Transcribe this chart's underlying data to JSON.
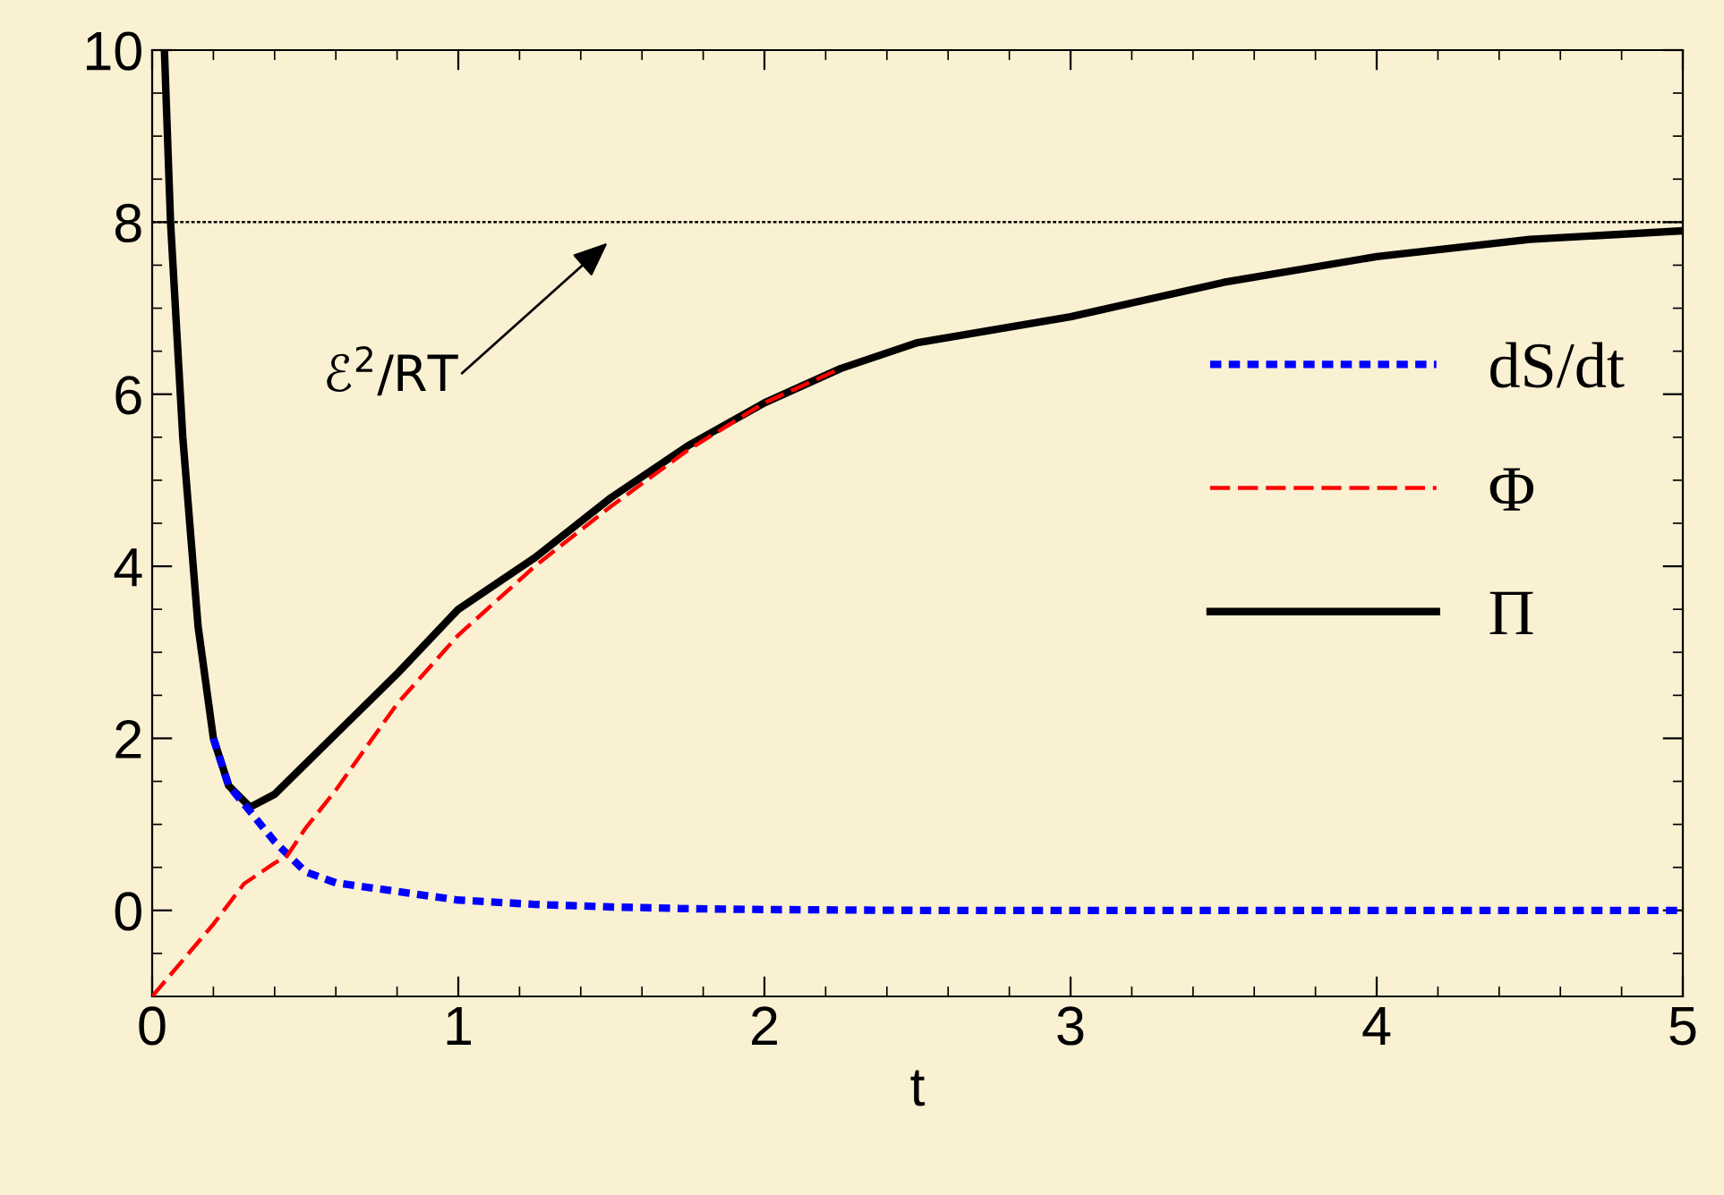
{
  "chart_data": {
    "type": "line",
    "xlabel": "t",
    "xlim": [
      0,
      5
    ],
    "ylim": [
      -1,
      10
    ],
    "xticks": [
      0,
      1,
      2,
      3,
      4,
      5
    ],
    "yticks": [
      0,
      2,
      4,
      6,
      8,
      10
    ],
    "grid": false,
    "legend": "right",
    "marker": "none",
    "series": [
      {
        "name": "dS/dt",
        "color": "#0000ff",
        "line_style": "dotted",
        "x": [
          0.2,
          0.25,
          0.32,
          0.4,
          0.5,
          0.6,
          0.8,
          1.0,
          1.25,
          1.5,
          1.75,
          2,
          2.5,
          3,
          4,
          5
        ],
        "values": [
          2.0,
          1.45,
          1.15,
          0.8,
          0.45,
          0.32,
          0.22,
          0.12,
          0.07,
          0.04,
          0.02,
          0.01,
          0,
          0,
          0,
          0
        ]
      },
      {
        "name": "Φ",
        "color": "#ff0000",
        "line_style": "dashed",
        "x": [
          0,
          0.1,
          0.2,
          0.3,
          0.4,
          0.44,
          0.5,
          0.6,
          0.8,
          1.0,
          1.25,
          1.5,
          1.75,
          2,
          2.25
        ],
        "values": [
          -1,
          -0.58,
          -0.16,
          0.31,
          0.55,
          0.63,
          0.95,
          1.4,
          2.4,
          3.2,
          4.0,
          4.7,
          5.35,
          5.9,
          6.3
        ]
      },
      {
        "name": "Π",
        "color": "#000000",
        "line_style": "solid",
        "x": [
          0.04,
          0.06,
          0.1,
          0.15,
          0.2,
          0.25,
          0.32,
          0.4,
          0.5,
          0.6,
          0.8,
          1.0,
          1.25,
          1.5,
          1.75,
          2,
          2.25,
          2.5,
          3,
          3.5,
          4,
          4.5,
          5
        ],
        "values": [
          10,
          8,
          5.5,
          3.3,
          2.0,
          1.45,
          1.2,
          1.35,
          1.7,
          2.05,
          2.75,
          3.5,
          4.1,
          4.8,
          5.4,
          5.9,
          6.3,
          6.6,
          6.9,
          7.3,
          7.6,
          7.8,
          7.9
        ]
      }
    ],
    "ref_lines": [
      {
        "axis": "y",
        "value": 8,
        "color": "#000000",
        "line_style": "dotted"
      }
    ],
    "annotations": [
      "ℰ$^{2}$/RT"
    ]
  }
}
